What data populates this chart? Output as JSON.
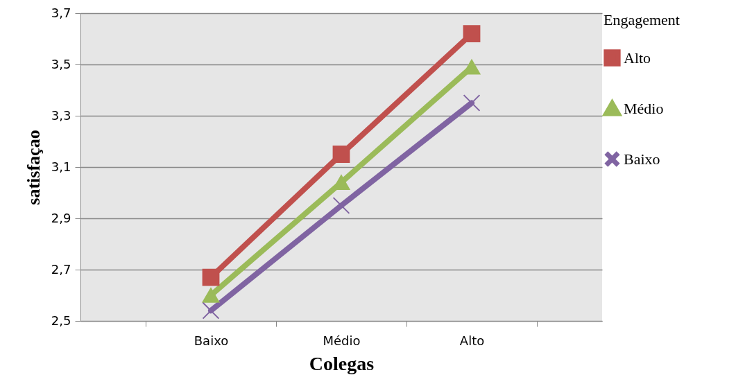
{
  "chart_data": {
    "type": "line",
    "xlabel": "Colegas",
    "ylabel": "satisfaçao",
    "legend_title": "Engagement",
    "categories": [
      "Baixo",
      "Médio",
      "Alto"
    ],
    "series": [
      {
        "name": "Alto",
        "color": "#c0504d",
        "marker": "square",
        "values": [
          2.67,
          3.15,
          3.62
        ]
      },
      {
        "name": "Médio",
        "color": "#9bbb59",
        "marker": "triangle",
        "values": [
          2.6,
          3.04,
          3.49
        ]
      },
      {
        "name": "Baixo",
        "color": "#8064a2",
        "marker": "cross",
        "values": [
          2.54,
          2.95,
          3.35
        ]
      }
    ],
    "ylim": [
      2.5,
      3.7
    ],
    "yticks": [
      {
        "value": 2.5,
        "label": "2,5"
      },
      {
        "value": 2.7,
        "label": "2,7"
      },
      {
        "value": 2.9,
        "label": "2,9"
      },
      {
        "value": 3.1,
        "label": "3,1"
      },
      {
        "value": 3.3,
        "label": "3,3"
      },
      {
        "value": 3.5,
        "label": "3,5"
      },
      {
        "value": 3.7,
        "label": "3,7"
      }
    ],
    "grid": "y",
    "legend": "right",
    "line_style": "solid"
  }
}
